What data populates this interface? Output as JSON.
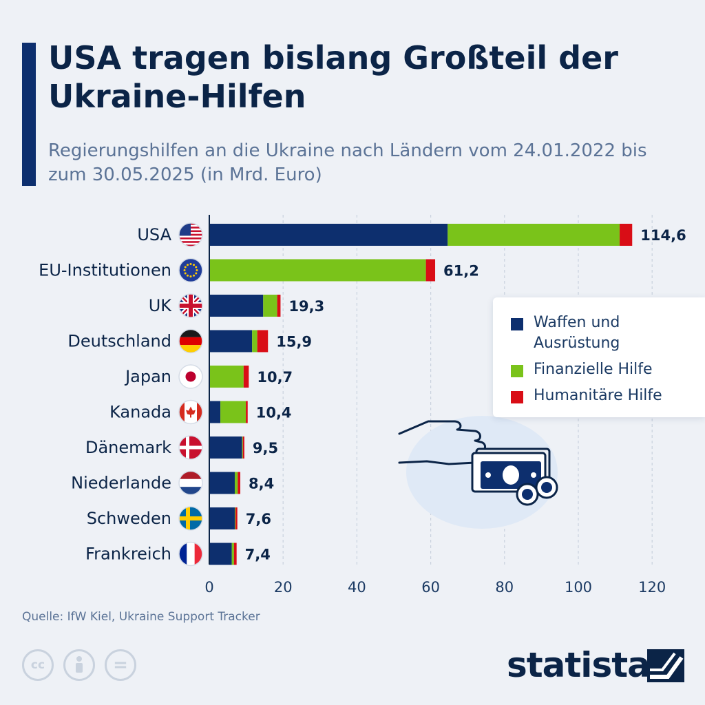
{
  "header": {
    "title": "USA tragen bislang Großteil der Ukraine-Hilfen",
    "subtitle": "Regierungshilfen an die Ukraine nach Ländern vom 24.01.2022 bis zum 30.05.2025 (in Mrd. Euro)"
  },
  "colors": {
    "waffen": "#0d2f6e",
    "finanziell": "#7ac31a",
    "humanitaer": "#d90d16",
    "title": "#0b2447",
    "accent": "#0d2f6e"
  },
  "chart_data": {
    "type": "bar",
    "orientation": "horizontal",
    "stacked": true,
    "categories": [
      "USA",
      "EU-Institutionen",
      "UK",
      "Deutschland",
      "Japan",
      "Kanada",
      "Dänemark",
      "Niederlande",
      "Schweden",
      "Frankreich"
    ],
    "flags": [
      "flag-usa-icon",
      "flag-eu-icon",
      "flag-uk-icon",
      "flag-germany-icon",
      "flag-japan-icon",
      "flag-canada-icon",
      "flag-denmark-icon",
      "flag-netherlands-icon",
      "flag-sweden-icon",
      "flag-france-icon"
    ],
    "series": [
      {
        "name": "Waffen und Ausrüstung",
        "color": "#0d2f6e",
        "values": [
          64.6,
          0,
          14.6,
          11.6,
          0,
          3.0,
          8.9,
          6.9,
          6.9,
          6.1
        ]
      },
      {
        "name": "Finanzielle Hilfe",
        "color": "#7ac31a",
        "values": [
          46.6,
          58.7,
          3.8,
          1.4,
          9.3,
          6.9,
          0.2,
          0.8,
          0.2,
          0.6
        ]
      },
      {
        "name": "Humanitäre Hilfe",
        "color": "#d90d16",
        "values": [
          3.4,
          2.5,
          0.9,
          2.9,
          1.4,
          0.5,
          0.4,
          0.7,
          0.5,
          0.7
        ]
      }
    ],
    "totals": [
      "114,6",
      "61,2",
      "19,3",
      "15,9",
      "10,7",
      "10,4",
      "9,5",
      "8,4",
      "7,6",
      "7,4"
    ],
    "xlim": [
      0,
      120
    ],
    "xticks": [
      0,
      20,
      40,
      60,
      80,
      100,
      120
    ],
    "xtick_labels": [
      "0",
      "20",
      "40",
      "60",
      "80",
      "100",
      "120"
    ],
    "grid": true,
    "legend_position": "right"
  },
  "legend": {
    "items": [
      {
        "label": "Waffen und Ausrüstung"
      },
      {
        "label": "Finanzielle Hilfe"
      },
      {
        "label": "Humanitäre Hilfe"
      }
    ]
  },
  "footer": {
    "source": "Quelle: IfW Kiel, Ukraine Support Tracker",
    "brand": "statista",
    "cc_icons": [
      "creative-commons-icon",
      "attribution-icon",
      "no-derivatives-icon"
    ],
    "cc_texts": [
      "cc",
      "="
    ]
  }
}
